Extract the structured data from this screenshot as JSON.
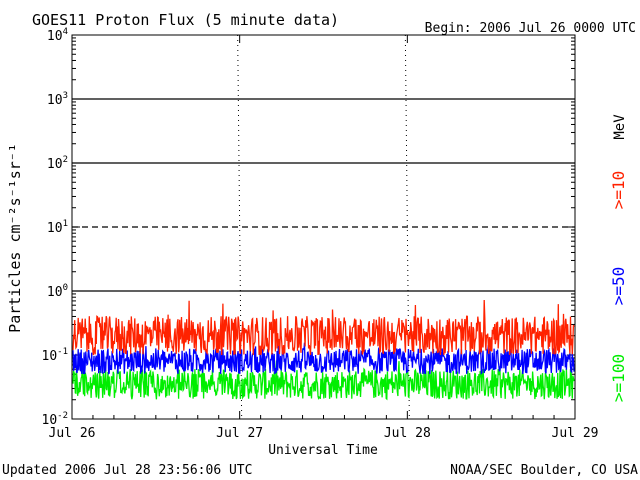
{
  "chart_data": {
    "type": "line",
    "title": "GOES11 Proton Flux (5 minute data)",
    "begin_label": "Begin: 2006 Jul 26 0000 UTC",
    "xlabel": "Universal Time",
    "ylabel": "Particles cm⁻²s⁻¹sr⁻¹",
    "yscale": "log",
    "ylim": [
      0.01,
      10000
    ],
    "y_ticks": [
      {
        "value": 0.01,
        "base": "10",
        "exp": "-2"
      },
      {
        "value": 0.1,
        "base": "10",
        "exp": "-1"
      },
      {
        "value": 1,
        "base": "10",
        "exp": "0"
      },
      {
        "value": 10,
        "base": "10",
        "exp": "1"
      },
      {
        "value": 100,
        "base": "10",
        "exp": "2"
      },
      {
        "value": 1000,
        "base": "10",
        "exp": "3"
      },
      {
        "value": 10000,
        "base": "10",
        "exp": "4"
      }
    ],
    "x_ticks": [
      "Jul 26",
      "Jul 27",
      "Jul 28",
      "Jul 29"
    ],
    "xlim_days": [
      "2006-07-26",
      "2006-07-29"
    ],
    "threshold_lines": [
      {
        "value": 1,
        "style": "solid"
      },
      {
        "value": 10,
        "style": "dashed"
      },
      {
        "value": 100,
        "style": "solid"
      },
      {
        "value": 1000,
        "style": "solid"
      }
    ],
    "series": [
      {
        "name": ">=10",
        "color": "#ff2200",
        "mean": 0.2,
        "min": 0.1,
        "max": 0.75
      },
      {
        "name": ">=50",
        "color": "#0000ff",
        "mean": 0.08,
        "min": 0.045,
        "max": 0.17
      },
      {
        "name": ">=100",
        "color": "#00ee00",
        "mean": 0.035,
        "min": 0.018,
        "max": 0.085
      }
    ],
    "legend_unit": "MeV",
    "legend_placement": "right"
  },
  "footer": {
    "updated": "Updated 2006 Jul 28 23:56:06 UTC",
    "source": "NOAA/SEC Boulder, CO USA"
  }
}
